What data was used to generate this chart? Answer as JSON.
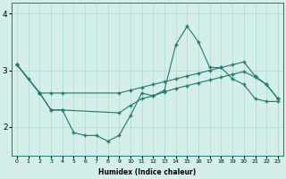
{
  "line1": {
    "x": [
      0,
      1,
      2,
      3,
      4,
      5,
      6,
      7,
      8,
      9,
      10,
      11,
      12,
      13,
      14,
      15,
      16,
      17,
      18,
      19,
      20,
      21,
      22,
      23
    ],
    "y": [
      3.1,
      2.85,
      2.6,
      2.3,
      2.3,
      1.9,
      1.85,
      1.85,
      1.75,
      1.85,
      2.2,
      2.6,
      2.55,
      2.65,
      3.45,
      3.78,
      3.5,
      3.05,
      3.05,
      2.85,
      2.75,
      2.5,
      2.45,
      2.45
    ]
  },
  "line2": {
    "x": [
      0,
      2,
      3,
      4,
      9,
      10,
      11,
      12,
      13,
      14,
      15,
      16,
      17,
      18,
      19,
      20,
      21,
      22,
      23
    ],
    "y": [
      3.1,
      2.6,
      2.6,
      2.6,
      2.6,
      2.65,
      2.7,
      2.75,
      2.8,
      2.85,
      2.9,
      2.95,
      3.0,
      3.05,
      3.1,
      3.15,
      2.9,
      2.75,
      2.5
    ]
  },
  "line3": {
    "x": [
      0,
      2,
      3,
      4,
      9,
      10,
      11,
      12,
      13,
      14,
      15,
      16,
      17,
      18,
      19,
      20,
      21,
      22,
      23
    ],
    "y": [
      3.1,
      2.6,
      2.3,
      2.3,
      2.25,
      2.38,
      2.5,
      2.55,
      2.62,
      2.68,
      2.73,
      2.78,
      2.83,
      2.88,
      2.93,
      2.98,
      2.88,
      2.75,
      2.5
    ]
  },
  "line_color": "#1a7a6e",
  "bg_color": "#d4eeea",
  "grid_color": "#b0d8d2",
  "xlabel": "Humidex (Indice chaleur)",
  "ylim": [
    1.5,
    4.2
  ],
  "xlim": [
    -0.5,
    23.5
  ],
  "yticks": [
    2,
    3,
    4
  ],
  "xticks": [
    0,
    1,
    2,
    3,
    4,
    5,
    6,
    7,
    8,
    9,
    10,
    11,
    12,
    13,
    14,
    15,
    16,
    17,
    18,
    19,
    20,
    21,
    22,
    23
  ],
  "marker": "+",
  "markersize": 3,
  "linewidth": 0.8
}
